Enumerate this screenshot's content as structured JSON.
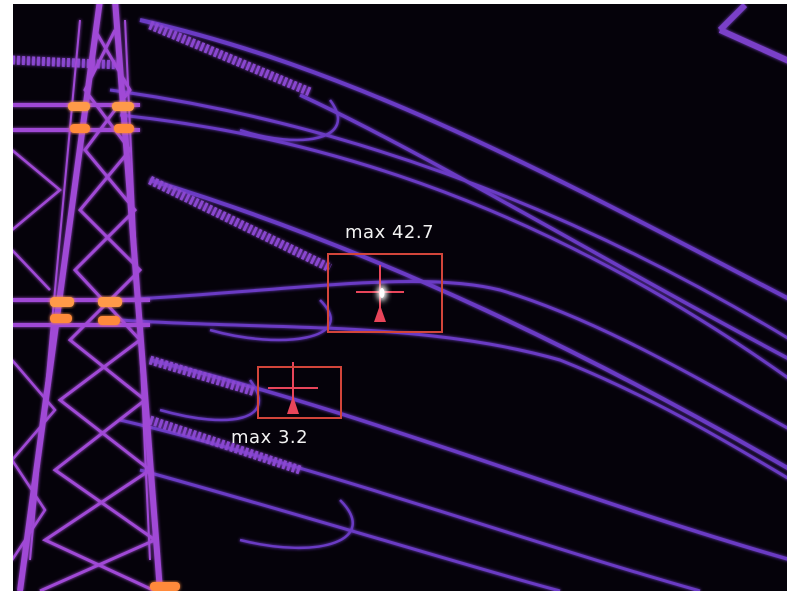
{
  "measurements": [
    {
      "label": "max 42.7",
      "box_color": "#d2453a"
    },
    {
      "label": "max 3.2",
      "box_color": "#d2453a"
    }
  ],
  "palette": {
    "background": "#05020a",
    "structure": "#7a3fc8",
    "warm": "#c24bd6",
    "hot": "#ff9a4a",
    "hottest": "#ffffff"
  },
  "icons": [
    "crosshair-icon",
    "triangle-marker-icon"
  ]
}
